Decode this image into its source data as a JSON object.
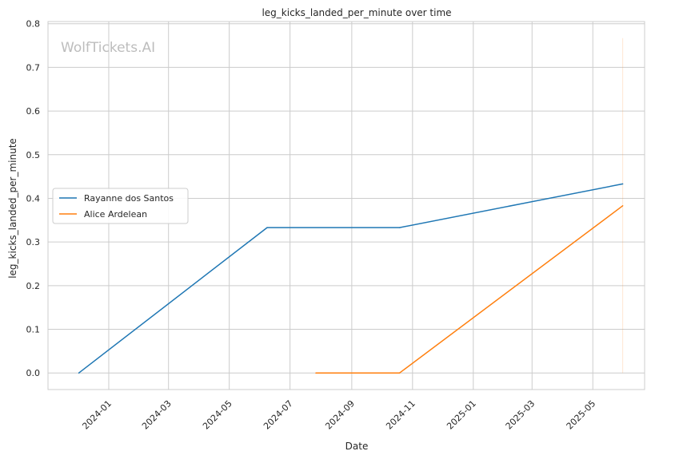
{
  "watermark": "WolfTickets.AI",
  "chart_data": {
    "type": "line",
    "title": "leg_kicks_landed_per_minute over time",
    "xlabel": "Date",
    "ylabel": "leg_kicks_landed_per_minute",
    "x_ticks": [
      "2024-01",
      "2024-03",
      "2024-05",
      "2024-07",
      "2024-09",
      "2024-11",
      "2025-01",
      "2025-03",
      "2025-05"
    ],
    "y_ticks": [
      "0.0",
      "0.1",
      "0.2",
      "0.3",
      "0.4",
      "0.5",
      "0.6",
      "0.7",
      "0.8"
    ],
    "xlim": [
      "2023-11-01",
      "2025-06-22"
    ],
    "ylim": [
      -0.038,
      0.805
    ],
    "grid": true,
    "legend_position": "center-left",
    "series": [
      {
        "name": "Rayanne dos Santos",
        "color": "#1f77b4",
        "points": [
          {
            "x": "2023-12-02",
            "y": 0.0
          },
          {
            "x": "2024-06-08",
            "y": 0.333
          },
          {
            "x": "2024-10-19",
            "y": 0.333
          },
          {
            "x": "2025-05-31",
            "y": 0.433
          }
        ]
      },
      {
        "name": "Alice Ardelean",
        "color": "#ff7f0e",
        "points": [
          {
            "x": "2024-07-27",
            "y": 0.0
          },
          {
            "x": "2024-10-19",
            "y": 0.0
          },
          {
            "x": "2025-05-31",
            "y": 0.383
          }
        ]
      }
    ],
    "annotations": [
      {
        "type": "vertical-line",
        "x": "2025-05-31",
        "y_from": 0.0,
        "y_to": 0.767,
        "color": "#ff7f0e"
      }
    ]
  }
}
